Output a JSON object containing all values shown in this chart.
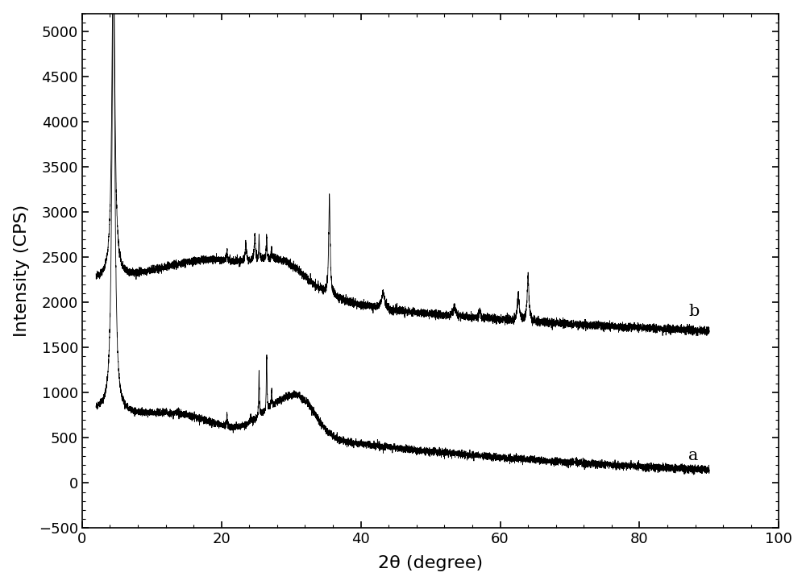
{
  "xlabel": "2θ (degree)",
  "ylabel": "Intensity (CPS)",
  "xlim": [
    0,
    100
  ],
  "ylim": [
    -500,
    5200
  ],
  "yticks": [
    -500,
    0,
    500,
    1000,
    1500,
    2000,
    2500,
    3000,
    3500,
    4000,
    4500,
    5000
  ],
  "xticks": [
    0,
    20,
    40,
    60,
    80,
    100
  ],
  "label_a": "a",
  "label_b": "b",
  "line_color": "#000000",
  "background_color": "#ffffff",
  "fig_width": 10.0,
  "fig_height": 7.26,
  "dpi": 100
}
